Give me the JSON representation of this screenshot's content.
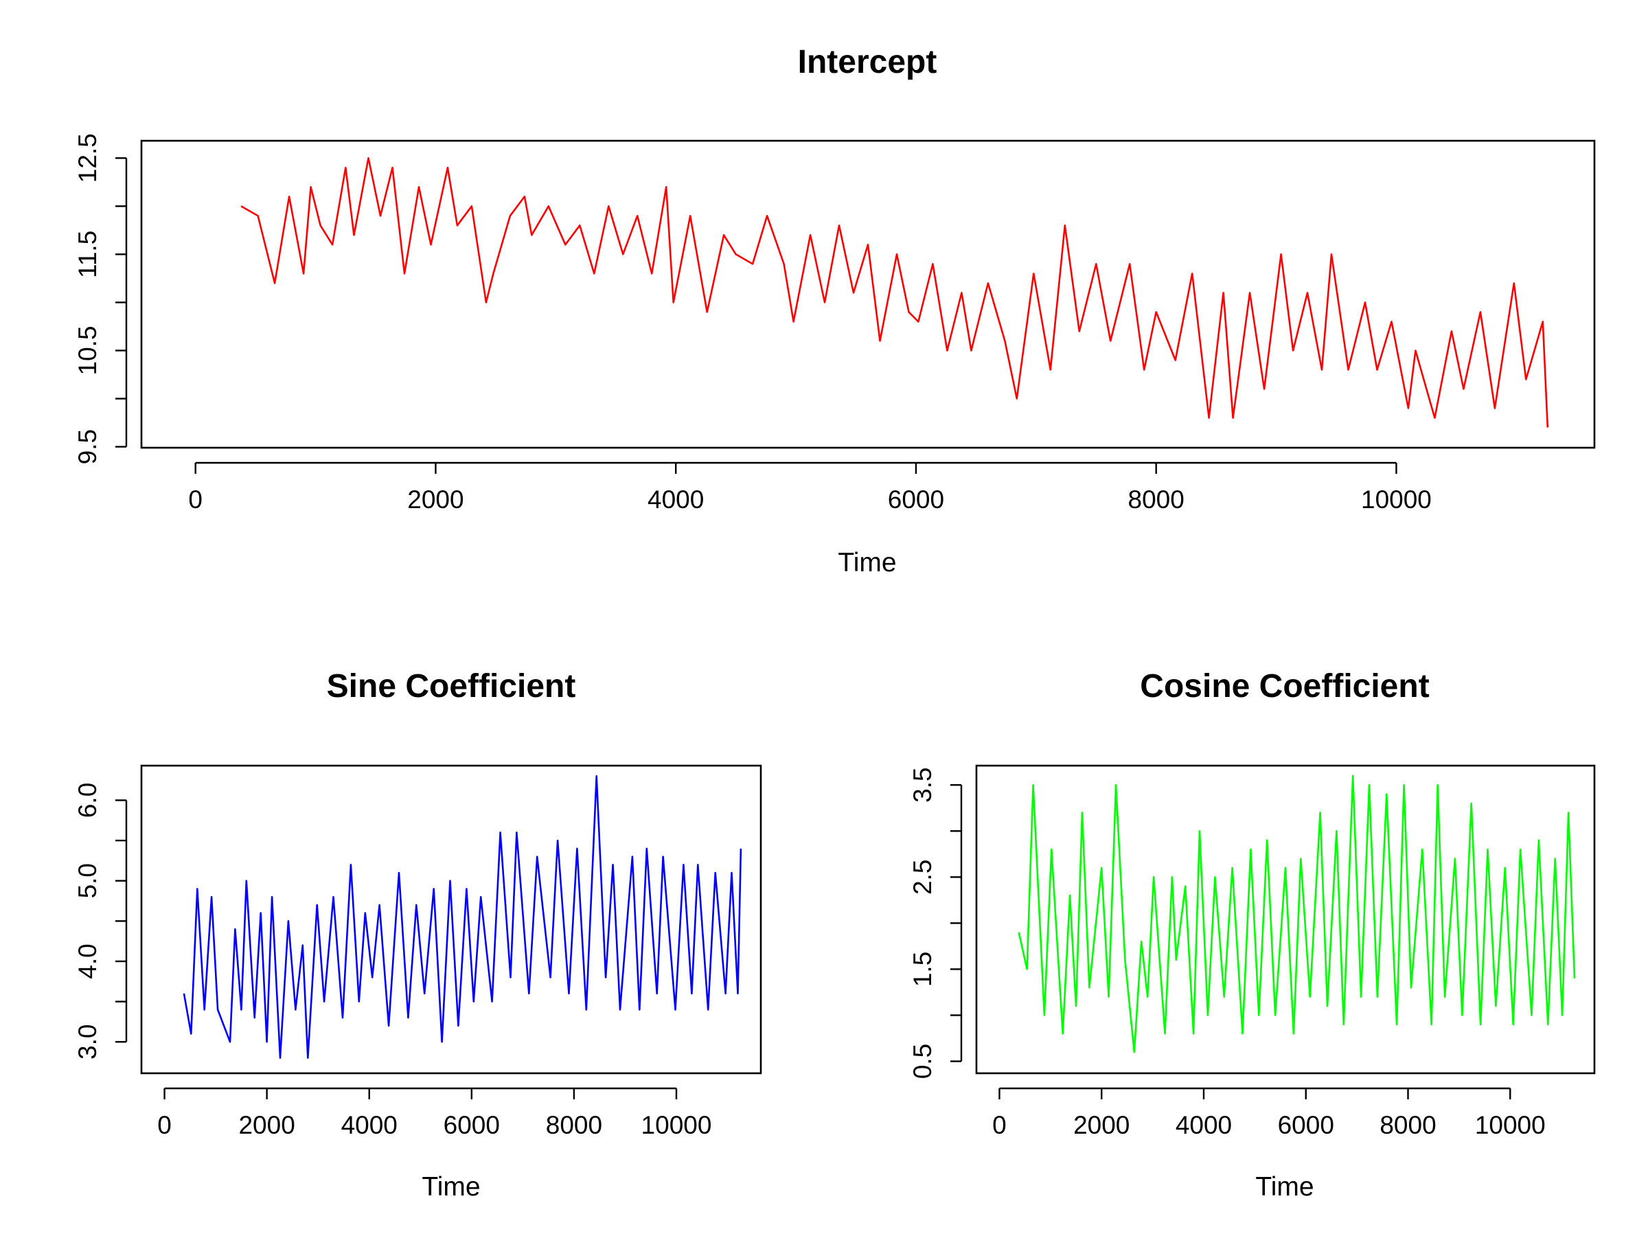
{
  "chart_data": [
    {
      "type": "line",
      "title": "Intercept",
      "xlabel": "Time",
      "ylabel": "",
      "xlim": [
        -450,
        11650
      ],
      "ylim": [
        9.49,
        12.68
      ],
      "xticks": [
        0,
        2000,
        4000,
        6000,
        8000,
        10000
      ],
      "xtick_labels": [
        "0",
        "2000",
        "4000",
        "6000",
        "8000",
        "10000"
      ],
      "yticks": [
        9.5,
        10,
        10.5,
        11,
        11.5,
        12,
        12.5
      ],
      "ytick_labels": [
        "9.5",
        "",
        "10.5",
        "",
        "11.5",
        "",
        "12.5"
      ],
      "grid": false,
      "color": "#ff0000",
      "series": [
        {
          "x": [
            380,
            520,
            660,
            780,
            900,
            960,
            1040,
            1140,
            1250,
            1320,
            1440,
            1540,
            1640,
            1740,
            1860,
            1960,
            2100,
            2180,
            2300,
            2420,
            2480,
            2620,
            2740,
            2800,
            2940,
            3080,
            3200,
            3320,
            3440,
            3560,
            3680,
            3800,
            3920,
            3980,
            4120,
            4260,
            4400,
            4500,
            4640,
            4760,
            4900,
            4980,
            5120,
            5240,
            5360,
            5480,
            5600,
            5700,
            5840,
            5940,
            6020,
            6140,
            6260,
            6380,
            6460,
            6600,
            6740,
            6840,
            6980,
            7120,
            7240,
            7360,
            7500,
            7620,
            7780,
            7900,
            8000,
            8160,
            8300,
            8440,
            8560,
            8640,
            8780,
            8900,
            9040,
            9140,
            9260,
            9380,
            9460,
            9600,
            9740,
            9840,
            9960,
            10100,
            10160,
            10320,
            10460,
            10560,
            10700,
            10820,
            10980,
            11080,
            11220,
            11260
          ],
          "y": [
            12.0,
            11.9,
            11.2,
            12.1,
            11.3,
            12.2,
            11.8,
            11.6,
            12.4,
            11.7,
            12.5,
            11.9,
            12.4,
            11.3,
            12.2,
            11.6,
            12.4,
            11.8,
            12.0,
            11.0,
            11.3,
            11.9,
            12.1,
            11.7,
            12.0,
            11.6,
            11.8,
            11.3,
            12.0,
            11.5,
            11.9,
            11.3,
            12.2,
            11.0,
            11.9,
            10.9,
            11.7,
            11.5,
            11.4,
            11.9,
            11.4,
            10.8,
            11.7,
            11.0,
            11.8,
            11.1,
            11.6,
            10.6,
            11.5,
            10.9,
            10.8,
            11.4,
            10.5,
            11.1,
            10.5,
            11.2,
            10.6,
            10.0,
            11.3,
            10.3,
            11.8,
            10.7,
            11.4,
            10.6,
            11.4,
            10.3,
            10.9,
            10.4,
            11.3,
            9.8,
            11.1,
            9.8,
            11.1,
            10.1,
            11.5,
            10.5,
            11.1,
            10.3,
            11.5,
            10.3,
            11.0,
            10.3,
            10.8,
            9.9,
            10.5,
            9.8,
            10.7,
            10.1,
            10.9,
            9.9,
            11.2,
            10.2,
            10.8,
            9.7
          ]
        }
      ]
    },
    {
      "type": "line",
      "title": "Sine Coefficient",
      "xlabel": "Time",
      "ylabel": "",
      "xlim": [
        -450,
        11650
      ],
      "ylim": [
        2.61,
        6.43
      ],
      "xticks": [
        0,
        2000,
        4000,
        6000,
        8000,
        10000
      ],
      "xtick_labels": [
        "0",
        "2000",
        "4000",
        "6000",
        "8000",
        "10000"
      ],
      "yticks": [
        3.0,
        3.5,
        4.0,
        4.5,
        5.0,
        5.5,
        6.0
      ],
      "ytick_labels": [
        "3.0",
        "",
        "4.0",
        "",
        "5.0",
        "",
        "6.0"
      ],
      "grid": false,
      "color": "#0000ff",
      "series": [
        {
          "x": [
            380,
            520,
            640,
            780,
            920,
            1040,
            1280,
            1380,
            1500,
            1600,
            1760,
            1880,
            2000,
            2100,
            2260,
            2420,
            2560,
            2700,
            2800,
            2980,
            3120,
            3300,
            3480,
            3640,
            3800,
            3920,
            4060,
            4200,
            4380,
            4580,
            4760,
            4920,
            5080,
            5260,
            5420,
            5580,
            5740,
            5900,
            6040,
            6180,
            6400,
            6560,
            6760,
            6880,
            7120,
            7280,
            7540,
            7680,
            7900,
            8060,
            8240,
            8440,
            8620,
            8760,
            8900,
            9140,
            9280,
            9420,
            9620,
            9740,
            9980,
            10140,
            10300,
            10420,
            10620,
            10760,
            10960,
            11080,
            11200,
            11260
          ],
          "y": [
            3.6,
            3.1,
            4.9,
            3.4,
            4.8,
            3.4,
            3.0,
            4.4,
            3.4,
            5.0,
            3.3,
            4.6,
            3.0,
            4.8,
            2.8,
            4.5,
            3.4,
            4.2,
            2.8,
            4.7,
            3.5,
            4.8,
            3.3,
            5.2,
            3.5,
            4.6,
            3.8,
            4.7,
            3.2,
            5.1,
            3.3,
            4.7,
            3.6,
            4.9,
            3.0,
            5.0,
            3.2,
            4.9,
            3.5,
            4.8,
            3.5,
            5.6,
            3.8,
            5.6,
            3.6,
            5.3,
            3.8,
            5.5,
            3.6,
            5.4,
            3.4,
            6.3,
            3.8,
            5.2,
            3.4,
            5.3,
            3.4,
            5.4,
            3.6,
            5.3,
            3.4,
            5.2,
            3.6,
            5.2,
            3.4,
            5.1,
            3.6,
            5.1,
            3.6,
            5.4
          ]
        }
      ]
    },
    {
      "type": "line",
      "title": "Cosine Coefficient",
      "xlabel": "Time",
      "ylabel": "",
      "xlim": [
        -450,
        11650
      ],
      "ylim": [
        0.37,
        3.71
      ],
      "xticks": [
        0,
        2000,
        4000,
        6000,
        8000,
        10000
      ],
      "xtick_labels": [
        "0",
        "2000",
        "4000",
        "6000",
        "8000",
        "10000"
      ],
      "yticks": [
        0.5,
        1.0,
        1.5,
        2.0,
        2.5,
        3.0,
        3.5
      ],
      "ytick_labels": [
        "0.5",
        "",
        "1.5",
        "",
        "2.5",
        "",
        "3.5"
      ],
      "grid": false,
      "color": "#00ff00",
      "series": [
        {
          "x": [
            380,
            540,
            660,
            880,
            1020,
            1240,
            1380,
            1500,
            1620,
            1760,
            2000,
            2140,
            2280,
            2460,
            2640,
            2780,
            2900,
            3020,
            3240,
            3380,
            3460,
            3640,
            3800,
            3920,
            4080,
            4220,
            4400,
            4560,
            4760,
            4920,
            5080,
            5240,
            5400,
            5600,
            5760,
            5900,
            6080,
            6280,
            6420,
            6600,
            6740,
            6920,
            7080,
            7240,
            7400,
            7580,
            7780,
            7920,
            8060,
            8280,
            8460,
            8580,
            8720,
            8920,
            9060,
            9240,
            9420,
            9560,
            9720,
            9900,
            10060,
            10200,
            10420,
            10560,
            10740,
            10880,
            11020,
            11140,
            11260
          ],
          "y": [
            1.9,
            1.5,
            3.5,
            1.0,
            2.8,
            0.8,
            2.3,
            1.1,
            3.2,
            1.3,
            2.6,
            1.2,
            3.5,
            1.6,
            0.6,
            1.8,
            1.2,
            2.5,
            0.8,
            2.5,
            1.6,
            2.4,
            0.8,
            3.0,
            1.0,
            2.5,
            1.2,
            2.6,
            0.8,
            2.8,
            1.0,
            2.9,
            1.0,
            2.6,
            0.8,
            2.7,
            1.2,
            3.2,
            1.1,
            3.0,
            0.9,
            3.6,
            1.2,
            3.5,
            1.2,
            3.4,
            0.9,
            3.5,
            1.3,
            2.8,
            0.9,
            3.5,
            1.2,
            2.7,
            1.0,
            3.3,
            0.9,
            2.8,
            1.1,
            2.6,
            0.9,
            2.8,
            1.0,
            2.9,
            0.9,
            2.7,
            1.0,
            3.2,
            1.4
          ]
        }
      ]
    }
  ]
}
